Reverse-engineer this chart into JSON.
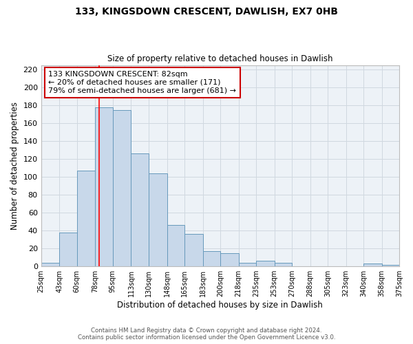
{
  "title": "133, KINGSDOWN CRESCENT, DAWLISH, EX7 0HB",
  "subtitle": "Size of property relative to detached houses in Dawlish",
  "xlabel": "Distribution of detached houses by size in Dawlish",
  "ylabel": "Number of detached properties",
  "bar_values": [
    4,
    38,
    107,
    178,
    175,
    126,
    104,
    46,
    36,
    17,
    15,
    4,
    6,
    4,
    0,
    0,
    0,
    0,
    3,
    2
  ],
  "bin_labels": [
    "25sqm",
    "43sqm",
    "60sqm",
    "78sqm",
    "95sqm",
    "113sqm",
    "130sqm",
    "148sqm",
    "165sqm",
    "183sqm",
    "200sqm",
    "218sqm",
    "235sqm",
    "253sqm",
    "270sqm",
    "288sqm",
    "305sqm",
    "323sqm",
    "340sqm",
    "358sqm",
    "375sqm"
  ],
  "bar_color": "#c8d8ea",
  "bar_edge_color": "#6699bb",
  "grid_color": "#d0d8e0",
  "background_color": "#edf2f7",
  "red_line_x": 82,
  "annotation_box_text": "133 KINGSDOWN CRESCENT: 82sqm\n← 20% of detached houses are smaller (171)\n79% of semi-detached houses are larger (681) →",
  "annotation_box_color": "white",
  "annotation_box_edge_color": "#cc0000",
  "ylim": [
    0,
    225
  ],
  "yticks": [
    0,
    20,
    40,
    60,
    80,
    100,
    120,
    140,
    160,
    180,
    200,
    220
  ],
  "footnote1": "Contains HM Land Registry data © Crown copyright and database right 2024.",
  "footnote2": "Contains public sector information licensed under the Open Government Licence v3.0.",
  "bin_edges": [
    25,
    43,
    60,
    78,
    95,
    113,
    130,
    148,
    165,
    183,
    200,
    218,
    235,
    253,
    270,
    288,
    305,
    323,
    340,
    358,
    375
  ]
}
